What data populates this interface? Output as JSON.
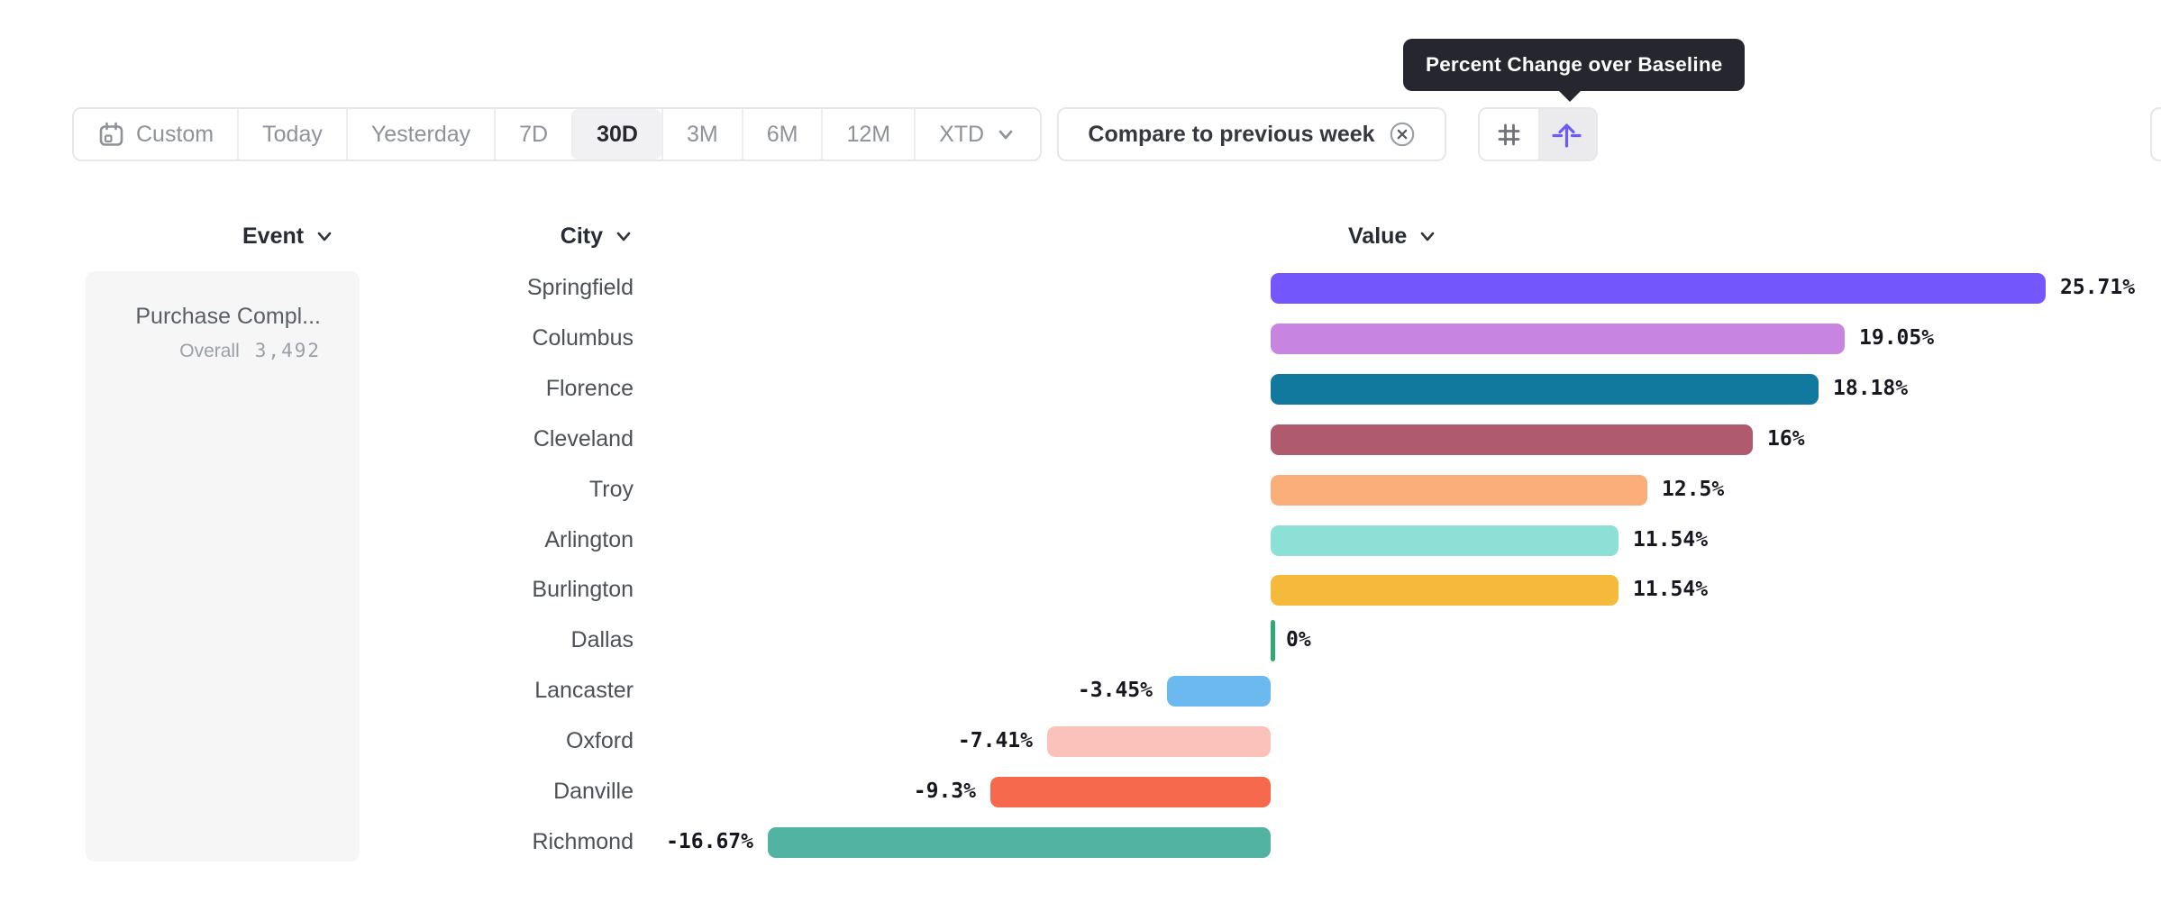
{
  "tooltip": {
    "text": "Percent Change over Baseline"
  },
  "toolbar": {
    "date_ranges": [
      {
        "label": "Custom",
        "icon": "calendar-icon",
        "selected": false
      },
      {
        "label": "Today",
        "selected": false
      },
      {
        "label": "Yesterday",
        "selected": false
      },
      {
        "label": "7D",
        "selected": false
      },
      {
        "label": "30D",
        "selected": true
      },
      {
        "label": "3M",
        "selected": false
      },
      {
        "label": "6M",
        "selected": false
      },
      {
        "label": "12M",
        "selected": false
      },
      {
        "label": "XTD",
        "icon": "chevron-down-icon",
        "selected": false
      }
    ],
    "compare": {
      "label": "Compare to previous week",
      "icon": "close-circle-icon"
    },
    "view_toggle": [
      {
        "icon": "number-grid-icon",
        "active": false
      },
      {
        "icon": "baseline-arrow-icon",
        "active": true
      }
    ]
  },
  "table": {
    "headers": [
      {
        "label": "Event",
        "icon": "chevron-down-icon"
      },
      {
        "label": "City",
        "icon": "chevron-down-icon"
      },
      {
        "label": "Value",
        "icon": "chevron-down-icon"
      }
    ]
  },
  "event_panel": {
    "title": "Purchase Compl...",
    "overall_label": "Overall",
    "overall_value": "3,492"
  },
  "chart_data": {
    "type": "bar",
    "orientation": "horizontal",
    "value_suffix": "%",
    "xlim": [
      -18,
      27
    ],
    "categories": [
      "Springfield",
      "Columbus",
      "Florence",
      "Cleveland",
      "Troy",
      "Arlington",
      "Burlington",
      "Dallas",
      "Lancaster",
      "Oxford",
      "Danville",
      "Richmond"
    ],
    "values": [
      25.71,
      19.05,
      18.18,
      16,
      12.5,
      11.54,
      11.54,
      0,
      -3.45,
      -7.41,
      -9.3,
      -16.67
    ],
    "labels": [
      "25.71%",
      "19.05%",
      "18.18%",
      "16%",
      "12.5%",
      "11.54%",
      "11.54%",
      "0%",
      "-3.45%",
      "-7.41%",
      "-9.3%",
      "-16.67%"
    ],
    "colors": [
      "#7456fd",
      "#c884e1",
      "#12799e",
      "#b05a6e",
      "#fcae7a",
      "#8ce0d6",
      "#f5ba3c",
      "#33a873",
      "#6cb9f0",
      "#fbc2bb",
      "#f7694c",
      "#52b3a3"
    ]
  }
}
